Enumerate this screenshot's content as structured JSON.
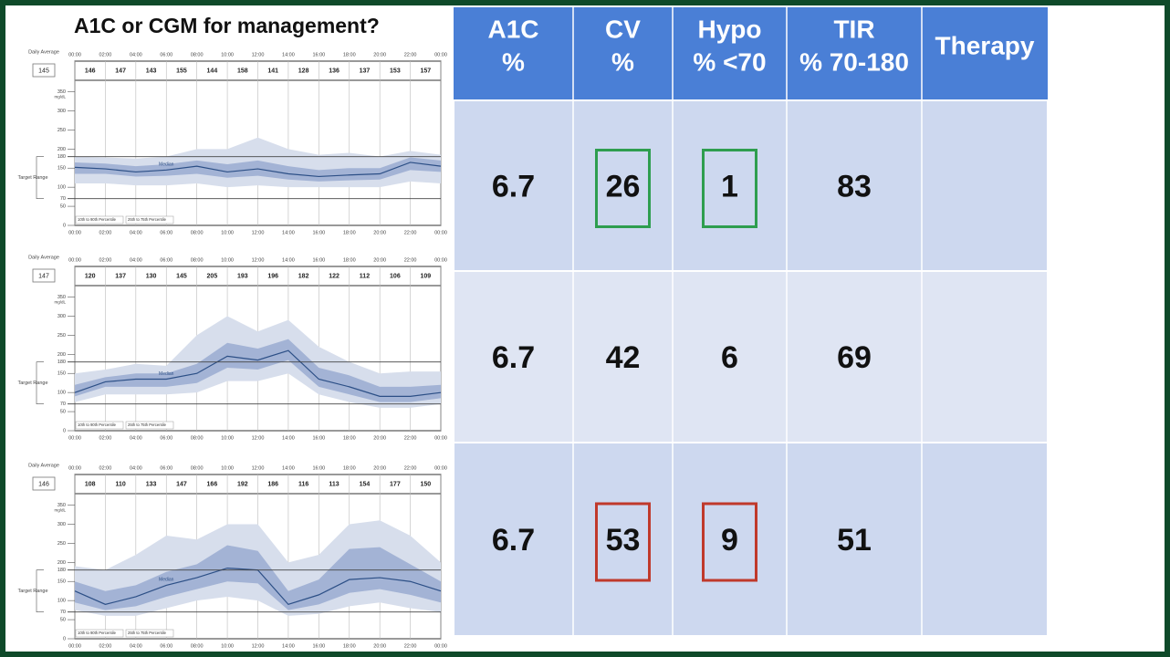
{
  "title": "A1C or CGM for management?",
  "chart_data": [
    {
      "type": "area",
      "daily_average_label": "Daily Average",
      "daily_average": 145,
      "unit": "mg/dL",
      "target_label": "Target Range",
      "hourly_values": [
        146,
        147,
        143,
        155,
        144,
        158,
        141,
        128,
        136,
        137,
        153,
        157
      ],
      "x": [
        0,
        2,
        4,
        6,
        8,
        10,
        12,
        14,
        16,
        18,
        20,
        22,
        24
      ],
      "xlim": [
        0,
        24
      ],
      "xticks": [
        {
          "value": 0,
          "label": "00:00"
        },
        {
          "value": 2,
          "label": "02:00"
        },
        {
          "value": 4,
          "label": "04:00"
        },
        {
          "value": 6,
          "label": "06:00"
        },
        {
          "value": 8,
          "label": "08:00"
        },
        {
          "value": 10,
          "label": "10:00"
        },
        {
          "value": 12,
          "label": "12:00"
        },
        {
          "value": 14,
          "label": "14:00"
        },
        {
          "value": 16,
          "label": "16:00"
        },
        {
          "value": 18,
          "label": "18:00"
        },
        {
          "value": 20,
          "label": "20:00"
        },
        {
          "value": 22,
          "label": "22:00"
        },
        {
          "value": 24,
          "label": "00:00"
        }
      ],
      "ylim": [
        0,
        380
      ],
      "yticks": [
        0,
        50,
        70,
        100,
        150,
        180,
        200,
        250,
        300,
        350
      ],
      "target_range": [
        70,
        180
      ],
      "series": [
        {
          "name": "10th to 90th Percentile",
          "color": "#d7deec",
          "lower": [
            110,
            110,
            105,
            105,
            110,
            100,
            105,
            100,
            100,
            100,
            100,
            115,
            110
          ],
          "upper": [
            180,
            178,
            175,
            180,
            200,
            200,
            230,
            200,
            185,
            190,
            180,
            195,
            185
          ]
        },
        {
          "name": "25th to 75th Percentile",
          "color": "#a3b3d5",
          "lower": [
            135,
            135,
            128,
            130,
            135,
            125,
            130,
            120,
            115,
            118,
            120,
            145,
            140
          ],
          "upper": [
            165,
            162,
            155,
            160,
            170,
            160,
            170,
            155,
            145,
            150,
            150,
            178,
            170
          ]
        },
        {
          "name": "Median",
          "color": "#2c4f86",
          "values": [
            152,
            148,
            140,
            145,
            155,
            140,
            148,
            135,
            128,
            132,
            135,
            165,
            155
          ]
        }
      ]
    },
    {
      "type": "area",
      "daily_average_label": "Daily Average",
      "daily_average": 147,
      "unit": "mg/dL",
      "target_label": "Target Range",
      "hourly_values": [
        120,
        137,
        130,
        145,
        205,
        193,
        196,
        182,
        122,
        112,
        106,
        109
      ],
      "x": [
        0,
        2,
        4,
        6,
        8,
        10,
        12,
        14,
        16,
        18,
        20,
        22,
        24
      ],
      "xlim": [
        0,
        24
      ],
      "xticks": [
        {
          "value": 0,
          "label": "00:00"
        },
        {
          "value": 2,
          "label": "02:00"
        },
        {
          "value": 4,
          "label": "04:00"
        },
        {
          "value": 6,
          "label": "06:00"
        },
        {
          "value": 8,
          "label": "08:00"
        },
        {
          "value": 10,
          "label": "10:00"
        },
        {
          "value": 12,
          "label": "12:00"
        },
        {
          "value": 14,
          "label": "14:00"
        },
        {
          "value": 16,
          "label": "16:00"
        },
        {
          "value": 18,
          "label": "18:00"
        },
        {
          "value": 20,
          "label": "20:00"
        },
        {
          "value": 22,
          "label": "22:00"
        },
        {
          "value": 24,
          "label": "00:00"
        }
      ],
      "ylim": [
        0,
        380
      ],
      "yticks": [
        0,
        50,
        70,
        100,
        150,
        180,
        200,
        250,
        300,
        350
      ],
      "target_range": [
        70,
        180
      ],
      "series": [
        {
          "name": "10th to 90th Percentile",
          "color": "#d7deec",
          "lower": [
            75,
            95,
            95,
            95,
            100,
            130,
            130,
            150,
            95,
            75,
            60,
            60,
            70
          ],
          "upper": [
            150,
            160,
            175,
            170,
            250,
            300,
            260,
            290,
            220,
            180,
            150,
            155,
            155
          ]
        },
        {
          "name": "25th to 75th Percentile",
          "color": "#a3b3d5",
          "lower": [
            90,
            115,
            115,
            115,
            125,
            165,
            160,
            185,
            115,
            95,
            75,
            75,
            85
          ],
          "upper": [
            120,
            140,
            150,
            150,
            175,
            230,
            215,
            240,
            165,
            145,
            115,
            115,
            120
          ]
        },
        {
          "name": "Median",
          "color": "#2c4f86",
          "values": [
            100,
            128,
            135,
            135,
            150,
            195,
            185,
            210,
            135,
            115,
            90,
            90,
            100
          ]
        }
      ]
    },
    {
      "type": "area",
      "daily_average_label": "Daily Average",
      "daily_average": 146,
      "unit": "mg/dL",
      "target_label": "Target Range",
      "hourly_values": [
        108,
        110,
        133,
        147,
        166,
        192,
        186,
        116,
        113,
        154,
        177,
        150
      ],
      "x": [
        0,
        2,
        4,
        6,
        8,
        10,
        12,
        14,
        16,
        18,
        20,
        22,
        24
      ],
      "xlim": [
        0,
        24
      ],
      "xticks": [
        {
          "value": 0,
          "label": "00:00"
        },
        {
          "value": 2,
          "label": "02:00"
        },
        {
          "value": 4,
          "label": "04:00"
        },
        {
          "value": 6,
          "label": "06:00"
        },
        {
          "value": 8,
          "label": "08:00"
        },
        {
          "value": 10,
          "label": "10:00"
        },
        {
          "value": 12,
          "label": "12:00"
        },
        {
          "value": 14,
          "label": "14:00"
        },
        {
          "value": 16,
          "label": "16:00"
        },
        {
          "value": 18,
          "label": "18:00"
        },
        {
          "value": 20,
          "label": "20:00"
        },
        {
          "value": 22,
          "label": "22:00"
        },
        {
          "value": 24,
          "label": "00:00"
        }
      ],
      "ylim": [
        0,
        380
      ],
      "yticks": [
        0,
        50,
        70,
        100,
        150,
        180,
        200,
        250,
        300,
        350
      ],
      "target_range": [
        70,
        180
      ],
      "series": [
        {
          "name": "10th to 90th Percentile",
          "color": "#d7deec",
          "lower": [
            75,
            60,
            60,
            80,
            100,
            110,
            100,
            60,
            65,
            85,
            95,
            80,
            70
          ],
          "upper": [
            190,
            180,
            220,
            270,
            260,
            300,
            300,
            200,
            220,
            300,
            310,
            270,
            200
          ]
        },
        {
          "name": "25th to 75th Percentile",
          "color": "#a3b3d5",
          "lower": [
            95,
            75,
            85,
            110,
            130,
            150,
            145,
            75,
            90,
            120,
            130,
            115,
            95
          ],
          "upper": [
            150,
            125,
            140,
            175,
            195,
            245,
            230,
            125,
            155,
            235,
            240,
            195,
            150
          ]
        },
        {
          "name": "Median",
          "color": "#2c4f86",
          "values": [
            125,
            90,
            110,
            140,
            160,
            185,
            180,
            90,
            115,
            155,
            160,
            150,
            125
          ]
        }
      ]
    }
  ],
  "table": {
    "header": [
      [
        "A1C",
        "%"
      ],
      [
        "CV",
        "%"
      ],
      [
        "Hypo",
        "% <70"
      ],
      [
        "TIR",
        "% 70-180"
      ],
      [
        "Therapy"
      ]
    ],
    "rows": [
      {
        "cells": [
          6.7,
          26,
          1,
          83
        ],
        "box_color": "#2e9e4f"
      },
      {
        "cells": [
          6.7,
          42,
          6,
          69
        ]
      },
      {
        "cells": [
          6.7,
          53,
          9,
          51
        ],
        "box_color": "#c0392b"
      }
    ]
  }
}
